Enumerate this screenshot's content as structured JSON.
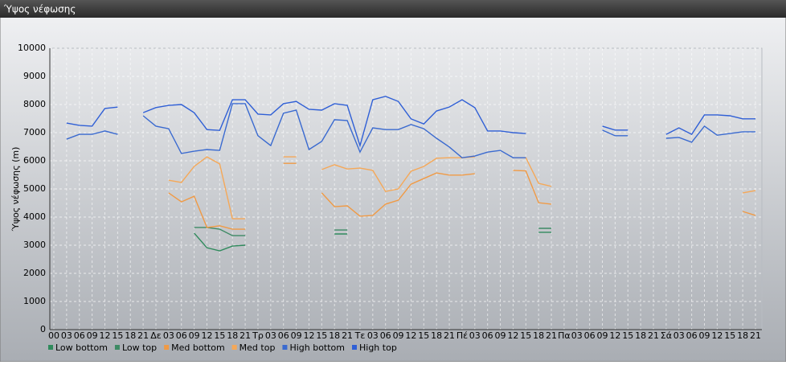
{
  "chart_data": {
    "type": "line",
    "title": "Ύψος νέφωσης",
    "ylabel": "Ύψος νέφωσης (m)",
    "categories": [
      "00",
      "03",
      "06",
      "09",
      "12",
      "15",
      "18",
      "21",
      "Δε",
      "03",
      "06",
      "09",
      "12",
      "15",
      "18",
      "21",
      "Τρ",
      "03",
      "06",
      "09",
      "12",
      "15",
      "18",
      "21",
      "Τε",
      "03",
      "06",
      "09",
      "12",
      "15",
      "18",
      "21",
      "Πέ",
      "03",
      "06",
      "09",
      "12",
      "15",
      "18",
      "21",
      "Πα",
      "03",
      "06",
      "09",
      "12",
      "15",
      "18",
      "21",
      "Σά",
      "03",
      "06",
      "09",
      "12",
      "15",
      "18",
      "21"
    ],
    "ylim": [
      0,
      10000
    ],
    "yticks": [
      0,
      1000,
      2000,
      3000,
      4000,
      5000,
      6000,
      7000,
      8000,
      9000,
      10000
    ],
    "grid": true,
    "series": [
      {
        "name": "Low bottom",
        "color": "#2f8a5c",
        "values": [
          null,
          null,
          null,
          null,
          null,
          null,
          null,
          null,
          null,
          null,
          null,
          3430,
          2910,
          2800,
          2970,
          3000,
          null,
          null,
          null,
          null,
          null,
          null,
          3400,
          3400,
          null,
          null,
          null,
          null,
          null,
          null,
          null,
          null,
          null,
          null,
          null,
          null,
          null,
          null,
          3460,
          3460,
          null,
          null,
          null,
          null,
          null,
          null,
          null,
          null,
          null,
          null,
          null,
          null,
          null,
          null,
          null,
          null
        ]
      },
      {
        "name": "Low top",
        "color": "#3d8a64",
        "values": [
          null,
          null,
          null,
          null,
          null,
          null,
          null,
          null,
          null,
          null,
          null,
          3630,
          3630,
          3570,
          3340,
          3340,
          null,
          null,
          null,
          null,
          null,
          null,
          3540,
          3540,
          null,
          null,
          null,
          null,
          null,
          null,
          null,
          null,
          null,
          null,
          null,
          null,
          null,
          null,
          3600,
          3600,
          null,
          null,
          null,
          null,
          null,
          null,
          null,
          null,
          null,
          null,
          null,
          null,
          null,
          null,
          null,
          null
        ]
      },
      {
        "name": "Med bottom",
        "color": "#f09a45",
        "values": [
          null,
          null,
          null,
          null,
          null,
          null,
          null,
          null,
          null,
          4860,
          4540,
          4740,
          3630,
          3690,
          3570,
          3570,
          null,
          null,
          5910,
          5910,
          null,
          4860,
          4370,
          4400,
          4030,
          4060,
          4460,
          4600,
          5170,
          5370,
          5570,
          5490,
          5490,
          5540,
          null,
          null,
          5660,
          5640,
          4510,
          4460,
          null,
          null,
          null,
          null,
          null,
          null,
          null,
          null,
          null,
          null,
          null,
          null,
          null,
          null,
          4200,
          4060
        ]
      },
      {
        "name": "Med top",
        "color": "#f5a858",
        "values": [
          null,
          null,
          null,
          null,
          null,
          null,
          null,
          null,
          null,
          5310,
          5230,
          5800,
          6140,
          5890,
          3940,
          3940,
          null,
          null,
          6140,
          6140,
          null,
          5690,
          5860,
          5710,
          5740,
          5660,
          4910,
          5000,
          5630,
          5800,
          6090,
          6110,
          6110,
          6140,
          null,
          null,
          6110,
          6110,
          5200,
          5090,
          null,
          null,
          null,
          null,
          null,
          null,
          null,
          null,
          null,
          null,
          null,
          null,
          null,
          null,
          4860,
          4940
        ]
      },
      {
        "name": "High bottom",
        "color": "#3a6ad0",
        "values": [
          null,
          6770,
          6940,
          6940,
          7060,
          6940,
          null,
          7600,
          7230,
          7140,
          6260,
          6340,
          6400,
          6370,
          8030,
          8030,
          6890,
          6540,
          7690,
          7800,
          6400,
          6690,
          7460,
          7430,
          6310,
          7170,
          7110,
          7110,
          7290,
          7140,
          6800,
          6490,
          6110,
          6170,
          6310,
          6370,
          6110,
          6110,
          null,
          null,
          null,
          null,
          null,
          7090,
          6890,
          6890,
          null,
          null,
          6800,
          6830,
          6660,
          7230,
          6910,
          6970,
          7030,
          7030
        ]
      },
      {
        "name": "High top",
        "color": "#2f5fd6",
        "values": [
          null,
          7340,
          7260,
          7230,
          7860,
          7910,
          null,
          7710,
          7890,
          7970,
          8000,
          7710,
          7110,
          7080,
          8170,
          8170,
          7660,
          7630,
          8030,
          8110,
          7830,
          7800,
          8030,
          7970,
          6540,
          8170,
          8290,
          8110,
          7490,
          7310,
          7770,
          7910,
          8170,
          7890,
          7060,
          7060,
          7000,
          6970,
          null,
          null,
          null,
          null,
          null,
          7230,
          7090,
          7090,
          null,
          null,
          6940,
          7170,
          6940,
          7630,
          7630,
          7600,
          7490,
          7490
        ]
      }
    ]
  }
}
